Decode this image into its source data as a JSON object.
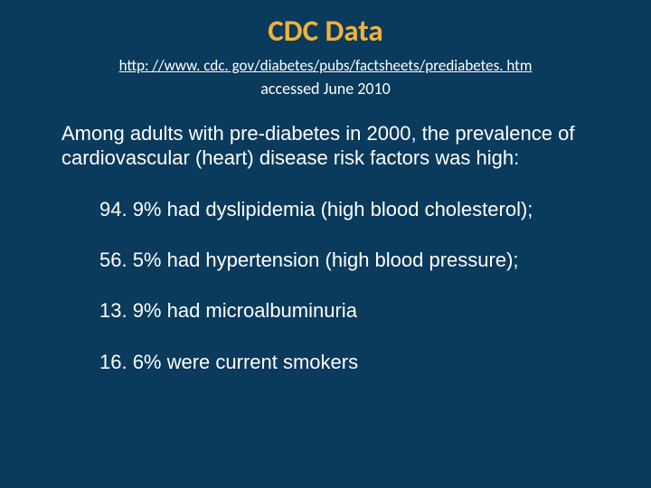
{
  "slide": {
    "title": "CDC Data",
    "source_url": "http: //www. cdc. gov/diabetes/pubs/factsheets/prediabetes. htm",
    "accessed": "accessed June 2010",
    "intro": "Among adults with pre-diabetes in 2000, the prevalence of cardiovascular (heart) disease risk factors was high:",
    "bullets": [
      "94. 9% had dyslipidemia (high blood cholesterol);",
      "56. 5% had hypertension (high blood pressure);",
      "13. 9% had microalbuminuria",
      "16. 6% were current smokers"
    ],
    "colors": {
      "background": "#0a3a5c",
      "title": "#edb33e",
      "text": "#ffffff"
    },
    "fonts": {
      "title_size_pt": 33,
      "body_size_pt": 22,
      "link_size_pt": 17,
      "accessed_size_pt": 18
    }
  }
}
